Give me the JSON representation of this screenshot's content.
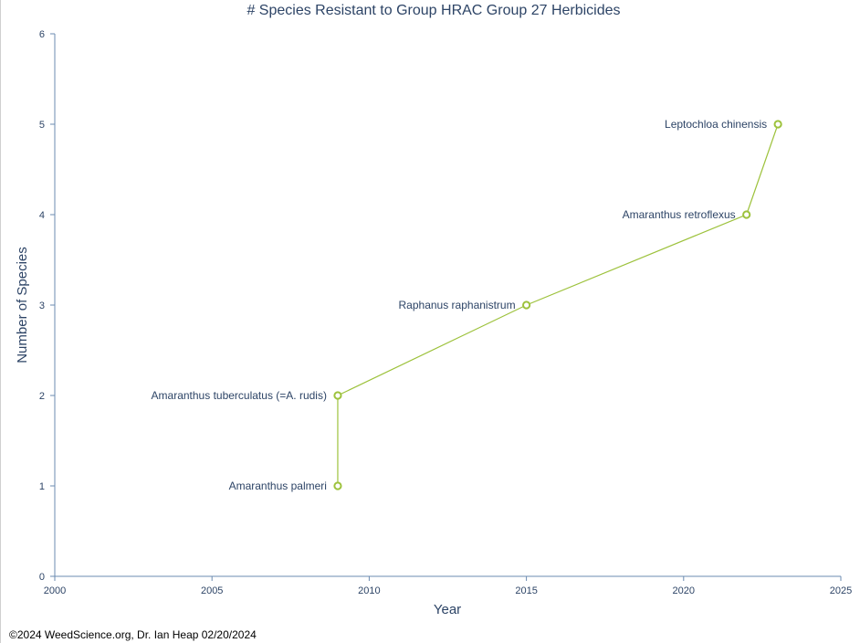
{
  "footer": {
    "credit": "©2024 WeedScience.org, Dr. Ian Heap 02/20/2024"
  },
  "colors": {
    "series": "#9dc23c",
    "axis": "#6b8bb0",
    "text": "#2d4466",
    "tick_text": "#2d4466"
  },
  "chart_data": {
    "type": "line",
    "title": "# Species Resistant to Group HRAC Group 27 Herbicides",
    "xlabel": "Year",
    "ylabel": "Number of Species",
    "xlim": [
      2000,
      2025
    ],
    "ylim": [
      0,
      6
    ],
    "xticks": [
      2000,
      2005,
      2010,
      2015,
      2020,
      2025
    ],
    "yticks": [
      0,
      1,
      2,
      3,
      4,
      5,
      6
    ],
    "grid": false,
    "legend": "none",
    "series": [
      {
        "points": [
          {
            "x": 2009,
            "y": 1,
            "label": "Amaranthus palmeri"
          },
          {
            "x": 2009,
            "y": 2,
            "label": "Amaranthus tuberculatus (=A. rudis)"
          },
          {
            "x": 2015,
            "y": 3,
            "label": "Raphanus raphanistrum"
          },
          {
            "x": 2022,
            "y": 4,
            "label": "Amaranthus retroflexus"
          },
          {
            "x": 2023,
            "y": 5,
            "label": "Leptochloa chinensis"
          }
        ]
      }
    ]
  }
}
